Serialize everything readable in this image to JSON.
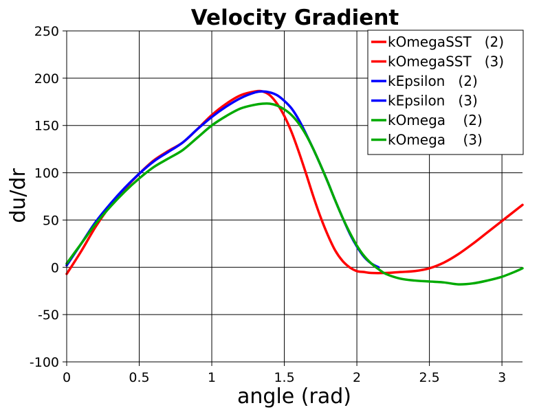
{
  "chart_data": {
    "type": "line",
    "title": "Velocity Gradient",
    "xlabel": "angle (rad)",
    "ylabel": "du/dr",
    "xlim": [
      0,
      3.1416
    ],
    "ylim": [
      -100,
      250
    ],
    "xticks": [
      {
        "value": 0,
        "label": "0"
      },
      {
        "value": 0.5,
        "label": "0.5"
      },
      {
        "value": 1,
        "label": "1"
      },
      {
        "value": 1.5,
        "label": "1.5"
      },
      {
        "value": 2,
        "label": "2"
      },
      {
        "value": 2.5,
        "label": "2.5"
      },
      {
        "value": 3,
        "label": "3"
      }
    ],
    "yticks": [
      {
        "value": -100,
        "label": "-100"
      },
      {
        "value": -50,
        "label": "-50"
      },
      {
        "value": 0,
        "label": "0"
      },
      {
        "value": 50,
        "label": "50"
      },
      {
        "value": 100,
        "label": "100"
      },
      {
        "value": 150,
        "label": "150"
      },
      {
        "value": 200,
        "label": "200"
      },
      {
        "value": 250,
        "label": "250"
      }
    ],
    "grid": true,
    "legend_position": "top-right",
    "legend": [
      {
        "label": "kOmegaSST   (2)",
        "color": "#ff0000"
      },
      {
        "label": "kOmegaSST   (3)",
        "color": "#ff0000"
      },
      {
        "label": "kEpsilon   (2)",
        "color": "#0000ff"
      },
      {
        "label": "kEpsilon   (3)",
        "color": "#0000ff"
      },
      {
        "label": "kOmega    (2)",
        "color": "#00aa00"
      },
      {
        "label": "kOmega    (3)",
        "color": "#00aa00"
      }
    ],
    "series": [
      {
        "key": "kOmegaSST",
        "color": "#ff0000",
        "x": [
          0,
          0.1,
          0.2,
          0.3,
          0.4,
          0.5,
          0.6,
          0.7,
          0.8,
          0.9,
          1.0,
          1.1,
          1.2,
          1.3,
          1.35,
          1.4,
          1.45,
          1.5,
          1.55,
          1.6,
          1.65,
          1.7,
          1.75,
          1.8,
          1.85,
          1.9,
          1.95,
          2.0,
          2.05,
          2.1,
          2.2,
          2.3,
          2.4,
          2.5,
          2.6,
          2.7,
          2.8,
          2.9,
          3.0,
          3.1,
          3.1416
        ],
        "y": [
          -7,
          17,
          43,
          65,
          83,
          99,
          113,
          123,
          132,
          146,
          161,
          173,
          182,
          186,
          186,
          182,
          173,
          160,
          143,
          122,
          99,
          75,
          53,
          34,
          18,
          7,
          0,
          -4,
          -5,
          -6,
          -6,
          -5,
          -4,
          -1,
          5,
          14,
          25,
          37,
          49,
          61,
          66
        ]
      },
      {
        "key": "kEpsilon",
        "color": "#0000ff",
        "x": [
          0,
          0.1,
          0.2,
          0.3,
          0.4,
          0.5,
          0.6,
          0.7,
          0.8,
          0.9,
          1.0,
          1.1,
          1.2,
          1.3,
          1.35,
          1.4,
          1.45,
          1.5,
          1.55,
          1.6,
          1.65,
          1.7,
          1.75,
          1.8,
          1.85,
          1.9,
          1.95,
          2.0,
          2.05,
          2.1,
          2.15
        ],
        "y": [
          2,
          25,
          48,
          67,
          84,
          99,
          112,
          122,
          132,
          146,
          159,
          170,
          179,
          185,
          186,
          185,
          182,
          176,
          168,
          156,
          141,
          125,
          108,
          90,
          71,
          53,
          36,
          22,
          11,
          4,
          0
        ]
      },
      {
        "key": "kOmega",
        "color": "#00aa00",
        "x": [
          0,
          0.1,
          0.2,
          0.3,
          0.4,
          0.5,
          0.6,
          0.7,
          0.8,
          0.9,
          1.0,
          1.1,
          1.2,
          1.3,
          1.35,
          1.4,
          1.45,
          1.5,
          1.55,
          1.6,
          1.65,
          1.7,
          1.75,
          1.8,
          1.85,
          1.9,
          1.95,
          2.0,
          2.05,
          2.1,
          2.15,
          2.2,
          2.3,
          2.4,
          2.5,
          2.6,
          2.7,
          2.8,
          2.9,
          3.0,
          3.1,
          3.1416
        ],
        "y": [
          4,
          25,
          46,
          64,
          80,
          94,
          106,
          115,
          124,
          137,
          150,
          160,
          168,
          172,
          173,
          173,
          171,
          167,
          161,
          152,
          140,
          125,
          108,
          90,
          71,
          53,
          37,
          23,
          12,
          4,
          -2,
          -7,
          -12,
          -14,
          -15,
          -16,
          -18,
          -17,
          -14,
          -10,
          -4,
          -1
        ]
      }
    ]
  }
}
